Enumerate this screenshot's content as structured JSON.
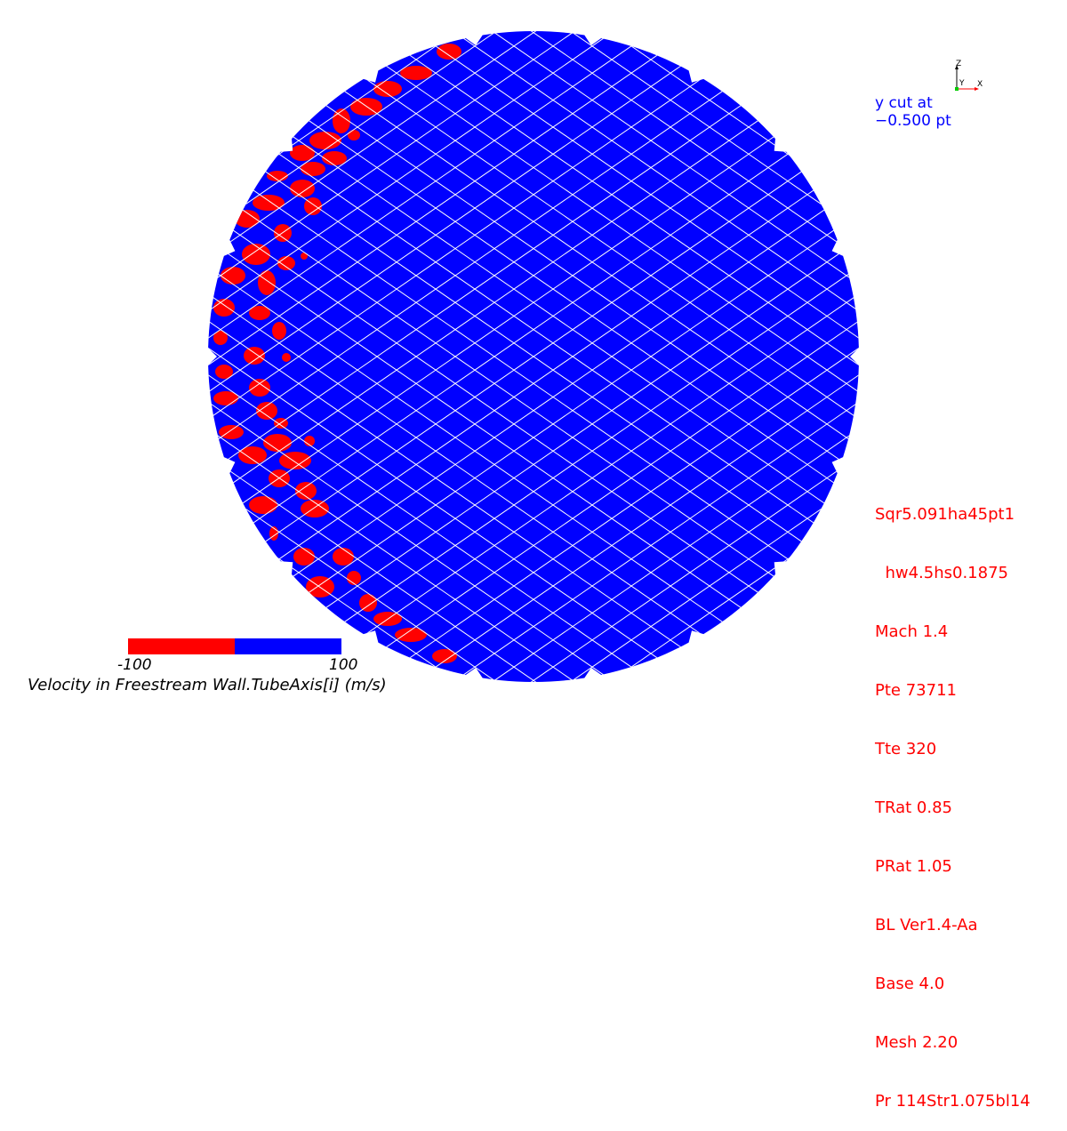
{
  "colors": {
    "positive": "#0000ff",
    "negative": "#ff0000",
    "mesh": "#ffffff",
    "params_text": "#ff0000",
    "cut_text": "#0000ff"
  },
  "axis_triad": {
    "z": "Z",
    "y": "Y",
    "x": "X"
  },
  "cut": {
    "line1": "y cut at",
    "line2": "−0.500 pt"
  },
  "params": [
    "Sqr5.091ha45pt1",
    "  hw4.5hs0.1875",
    "Mach 1.4",
    "Pte 73711",
    "Tte 320",
    "TRat 0.85",
    "PRat 1.05",
    "BL Ver1.4-Aa",
    "Base 4.0",
    "Mesh 2.20",
    "Pr 114Str1.075bl14"
  ],
  "legend": {
    "min": "-100",
    "max": "100",
    "title": "Velocity in Freestream Wall.TubeAxis[i] (m/s)"
  }
}
